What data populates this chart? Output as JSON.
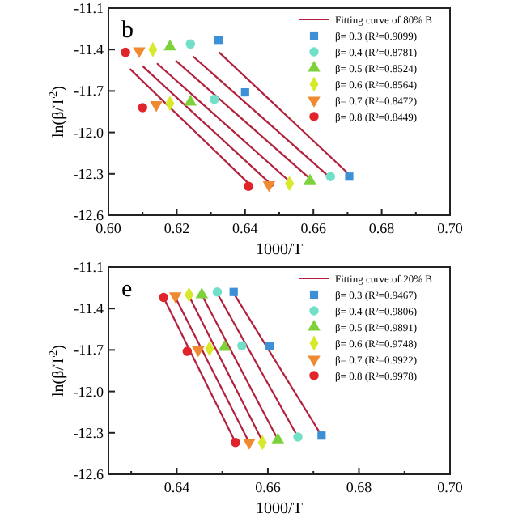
{
  "chart_data": [
    {
      "type": "scatter",
      "annotations": [
        "b"
      ],
      "xlabel": "1000/T",
      "ylabel": "ln(β/T$^{2}$)",
      "xlim": [
        0.6,
        0.7
      ],
      "ylim": [
        -12.6,
        -11.1
      ],
      "xticks": [
        {
          "value": 0.6,
          "label": "0.60"
        },
        {
          "value": 0.61,
          "label": null
        },
        0.62,
        {
          "value": 0.63,
          "label": null
        },
        0.64,
        {
          "value": 0.65,
          "label": null
        },
        0.66,
        {
          "value": 0.67,
          "label": null
        },
        0.68,
        {
          "value": 0.69,
          "label": null
        },
        {
          "value": 0.7,
          "label": "0.70"
        }
      ],
      "yticks": [
        -11.1,
        -11.4,
        -11.7,
        {
          "value": -12,
          "label": "-12.0"
        },
        -12.3,
        -12.6
      ],
      "legend": "top right",
      "series": [
        {
          "type": "line",
          "name": "Fitting curve of 80% B",
          "color": "#b3203c",
          "x": [
            0.6324,
            0.6707
          ],
          "values": [
            -11.42,
            -12.31
          ]
        },
        {
          "type": "line",
          "color": "#b3203c",
          "x": [
            0.6248,
            0.665
          ],
          "values": [
            -11.45,
            -12.33
          ]
        },
        {
          "type": "line",
          "color": "#b3203c",
          "x": [
            0.6197,
            0.6597
          ],
          "values": [
            -11.48,
            -12.35
          ]
        },
        {
          "type": "line",
          "color": "#b3203c",
          "x": [
            0.6142,
            0.6537
          ],
          "values": [
            -11.5,
            -12.37
          ]
        },
        {
          "type": "line",
          "color": "#b3203c",
          "x": [
            0.61,
            0.6482
          ],
          "values": [
            -11.52,
            -12.39
          ]
        },
        {
          "type": "line",
          "color": "#b3203c",
          "x": [
            0.6063,
            0.6423
          ],
          "values": [
            -11.54,
            -12.4
          ]
        },
        {
          "name": "β= 0.3 (R²=0.9099)",
          "marker": "square",
          "color": "#3d8fd6",
          "x": [
            0.6322,
            0.64,
            0.6705
          ],
          "values": [
            -11.33,
            -11.71,
            -12.32
          ]
        },
        {
          "name": "β= 0.4 (R²=0.8781)",
          "marker": "circle",
          "color": "#72e0c8",
          "x": [
            0.624,
            0.631,
            0.665
          ],
          "values": [
            -11.36,
            -11.76,
            -12.32
          ]
        },
        {
          "name": "β= 0.5 (R²=0.8524)",
          "marker": "triangle",
          "color": "#7dd23c",
          "x": [
            0.618,
            0.624,
            0.659
          ],
          "values": [
            -11.38,
            -11.78,
            -12.35
          ]
        },
        {
          "name": "β= 0.6 (R²=0.8564)",
          "marker": "diamond",
          "color": "#d8e82a",
          "x": [
            0.613,
            0.618,
            0.653
          ],
          "values": [
            -11.4,
            -11.79,
            -12.37
          ]
        },
        {
          "name": "β= 0.7 (R²=0.8472)",
          "marker": "triangle-down",
          "color": "#f08a30",
          "x": [
            0.609,
            0.614,
            0.647
          ],
          "values": [
            -11.41,
            -11.8,
            -12.38
          ]
        },
        {
          "name": "β= 0.8 (R²=0.8449)",
          "marker": "circle",
          "color": "#e0242a",
          "x": [
            0.605,
            0.61,
            0.641
          ],
          "values": [
            -11.42,
            -11.82,
            -12.39
          ]
        }
      ]
    },
    {
      "type": "scatter",
      "annotations": [
        "e"
      ],
      "xlabel": "1000/T",
      "ylabel": "ln(β/T$^{2}$)",
      "xlim": [
        0.625,
        0.7
      ],
      "ylim": [
        -12.6,
        -11.1
      ],
      "xticks": [
        {
          "value": 0.63,
          "label": null
        },
        0.64,
        {
          "value": 0.65,
          "label": null
        },
        0.66,
        {
          "value": 0.67,
          "label": null
        },
        0.68,
        {
          "value": 0.69,
          "label": null
        },
        {
          "value": 0.7,
          "label": "0.70"
        }
      ],
      "yticks": [
        -11.1,
        -11.4,
        -11.7,
        {
          "value": -12,
          "label": "-12.0"
        },
        -12.3,
        -12.6
      ],
      "legend": "top right",
      "series": [
        {
          "type": "line",
          "name": "Fitting curve of 20% B",
          "color": "#b3203c",
          "x": [
            0.6525,
            0.6718
          ],
          "values": [
            -11.29,
            -12.32
          ]
        },
        {
          "type": "line",
          "color": "#b3203c",
          "x": [
            0.6489,
            0.6666
          ],
          "values": [
            -11.29,
            -12.33
          ]
        },
        {
          "type": "line",
          "color": "#b3203c",
          "x": [
            0.6455,
            0.6622
          ],
          "values": [
            -11.3,
            -12.35
          ]
        },
        {
          "type": "line",
          "color": "#b3203c",
          "x": [
            0.6427,
            0.6588
          ],
          "values": [
            -11.31,
            -12.36
          ]
        },
        {
          "type": "line",
          "color": "#b3203c",
          "x": [
            0.6397,
            0.6559
          ],
          "values": [
            -11.32,
            -12.37
          ]
        },
        {
          "type": "line",
          "color": "#b3203c",
          "x": [
            0.6371,
            0.6529
          ],
          "values": [
            -11.32,
            -12.37
          ]
        },
        {
          "name": "β= 0.3 (R²=0.9467)",
          "marker": "square",
          "color": "#3d8fd6",
          "x": [
            0.6525,
            0.6604,
            0.6718
          ],
          "values": [
            -11.28,
            -11.67,
            -12.32
          ]
        },
        {
          "name": "β= 0.4 (R²=0.9806)",
          "marker": "circle",
          "color": "#72e0c8",
          "x": [
            0.6489,
            0.6543,
            0.6666
          ],
          "values": [
            -11.28,
            -11.67,
            -12.33
          ]
        },
        {
          "name": "β= 0.5 (R²=0.9891)",
          "marker": "triangle",
          "color": "#7dd23c",
          "x": [
            0.6455,
            0.6505,
            0.6622
          ],
          "values": [
            -11.3,
            -11.68,
            -12.35
          ]
        },
        {
          "name": "β= 0.6 (R²=0.9748)",
          "marker": "diamond",
          "color": "#d8e82a",
          "x": [
            0.6427,
            0.6472,
            0.6588
          ],
          "values": [
            -11.3,
            -11.69,
            -12.37
          ]
        },
        {
          "name": "β= 0.7 (R²=0.9922)",
          "marker": "triangle-down",
          "color": "#f08a30",
          "x": [
            0.6397,
            0.6447,
            0.6559
          ],
          "values": [
            -11.31,
            -11.7,
            -12.37
          ]
        },
        {
          "name": "β= 0.8 (R²=0.9978)",
          "marker": "circle",
          "color": "#e0242a",
          "x": [
            0.6371,
            0.6423,
            0.6529
          ],
          "values": [
            -11.32,
            -11.71,
            -12.37
          ]
        }
      ]
    }
  ]
}
